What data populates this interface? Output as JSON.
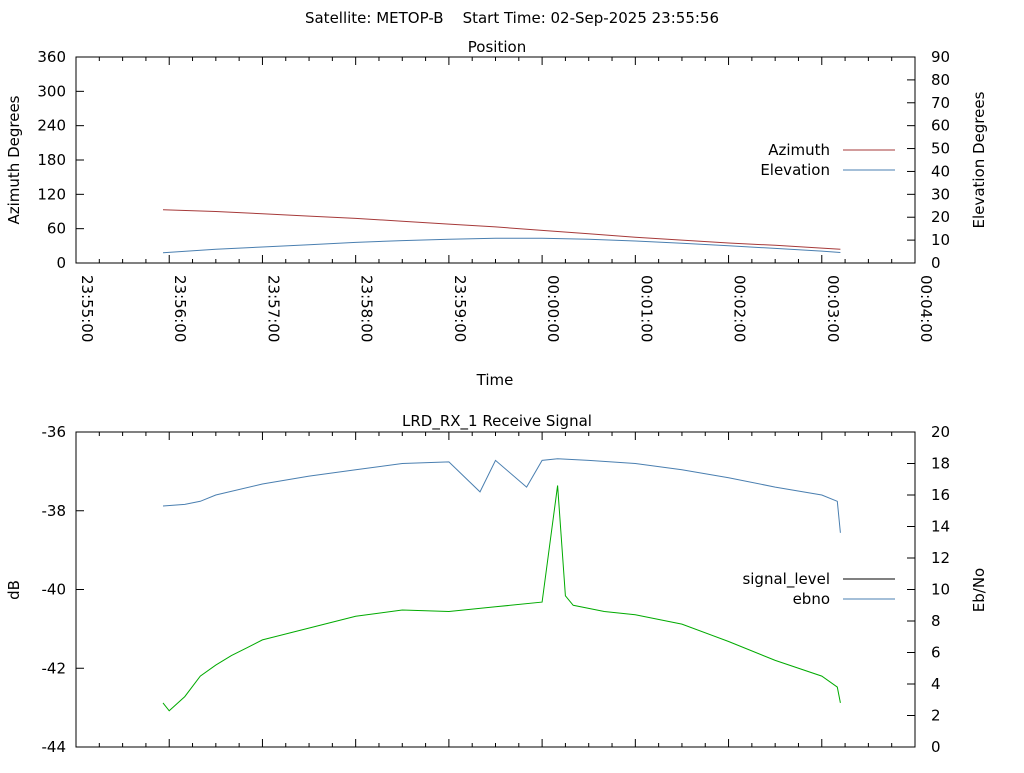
{
  "header": {
    "main_title": "Satellite: METOP-B    Start Time: 02-Sep-2025 23:55:56"
  },
  "chart_data": [
    {
      "type": "line",
      "title": "Position",
      "xlabel": "Time",
      "ylabel": "Azimuth Degrees",
      "y2label": "Elevation Degrees",
      "ylim": [
        0,
        360
      ],
      "y2lim": [
        0,
        90
      ],
      "yticks": [
        0,
        60,
        120,
        180,
        240,
        300,
        360
      ],
      "y2ticks": [
        0,
        10,
        20,
        30,
        40,
        50,
        60,
        70,
        80,
        90
      ],
      "xlim": [
        "23:55:00",
        "00:04:00"
      ],
      "xticks": [
        "23:55:00",
        "23:56:00",
        "23:57:00",
        "23:58:00",
        "23:59:00",
        "00:00:00",
        "00:01:00",
        "00:02:00",
        "00:03:00",
        "00:04:00"
      ],
      "legend_position": "right",
      "grid": false,
      "series": [
        {
          "name": "Azimuth",
          "axis": "left",
          "color": "#a63a3a",
          "x": [
            "23:55:56",
            "23:56:30",
            "23:57:00",
            "23:57:30",
            "23:58:00",
            "23:58:30",
            "23:59:00",
            "23:59:30",
            "00:00:00",
            "00:00:30",
            "00:01:00",
            "00:01:30",
            "00:02:00",
            "00:02:30",
            "00:03:00",
            "00:03:12"
          ],
          "values": [
            93,
            90,
            86,
            82,
            78,
            73,
            68,
            63,
            57,
            51,
            45,
            40,
            35,
            31,
            26,
            24
          ]
        },
        {
          "name": "Elevation",
          "axis": "right",
          "color": "#4a7fb0",
          "x": [
            "23:55:56",
            "23:56:30",
            "23:57:00",
            "23:57:30",
            "23:58:00",
            "23:58:30",
            "23:59:00",
            "23:59:30",
            "00:00:00",
            "00:00:30",
            "00:01:00",
            "00:01:30",
            "00:02:00",
            "00:02:30",
            "00:03:00",
            "00:03:12"
          ],
          "values": [
            4.5,
            6,
            7,
            8,
            9,
            9.8,
            10.4,
            10.8,
            10.8,
            10.4,
            9.6,
            8.6,
            7.5,
            6.4,
            5.2,
            4.6
          ]
        }
      ]
    },
    {
      "type": "line",
      "title": "LRD_RX_1 Receive Signal",
      "ylabel": "dB",
      "y2label": "Eb/No",
      "ylim": [
        -44,
        -36
      ],
      "y2lim": [
        0,
        20
      ],
      "yticks": [
        -44,
        -42,
        -40,
        -38,
        -36
      ],
      "y2ticks": [
        0,
        2,
        4,
        6,
        8,
        10,
        12,
        14,
        16,
        18,
        20
      ],
      "xlim": [
        "23:55:00",
        "00:04:00"
      ],
      "legend_position": "right",
      "grid": false,
      "series": [
        {
          "name": "signal_level",
          "axis": "left",
          "color": "#000000",
          "x": [],
          "values": []
        },
        {
          "name": "ebno",
          "axis": "right",
          "color": "#4a7fb0",
          "x": [
            "23:55:56",
            "23:56:10",
            "23:56:20",
            "23:56:30",
            "23:57:00",
            "23:57:30",
            "23:58:00",
            "23:58:30",
            "23:59:00",
            "23:59:20",
            "23:59:30",
            "23:59:50",
            "00:00:00",
            "00:00:10",
            "00:00:30",
            "00:01:00",
            "00:01:30",
            "00:02:00",
            "00:02:30",
            "00:03:00",
            "00:03:10",
            "00:03:12"
          ],
          "values": [
            15.3,
            15.4,
            15.6,
            16.0,
            16.7,
            17.2,
            17.6,
            18.0,
            18.1,
            16.2,
            18.2,
            16.5,
            18.2,
            18.3,
            18.2,
            18.0,
            17.6,
            17.1,
            16.5,
            16.0,
            15.6,
            13.6
          ]
        },
        {
          "name": "",
          "axis": "right",
          "color": "#00aa00",
          "x": [
            "23:55:56",
            "23:56:00",
            "23:56:10",
            "23:56:20",
            "23:56:30",
            "23:56:40",
            "23:56:50",
            "23:57:00",
            "23:57:20",
            "23:57:40",
            "23:58:00",
            "23:58:30",
            "23:59:00",
            "23:59:30",
            "00:00:00",
            "00:00:10",
            "00:00:15",
            "00:00:20",
            "00:00:40",
            "00:01:00",
            "00:01:30",
            "00:02:00",
            "00:02:30",
            "00:03:00",
            "00:03:10",
            "00:03:12"
          ],
          "values": [
            2.8,
            2.3,
            3.2,
            4.5,
            5.2,
            5.8,
            6.3,
            6.8,
            7.3,
            7.8,
            8.3,
            8.7,
            8.6,
            8.9,
            9.2,
            16.6,
            9.6,
            9.0,
            8.6,
            8.4,
            7.8,
            6.7,
            5.5,
            4.5,
            3.8,
            2.8
          ]
        }
      ]
    }
  ]
}
